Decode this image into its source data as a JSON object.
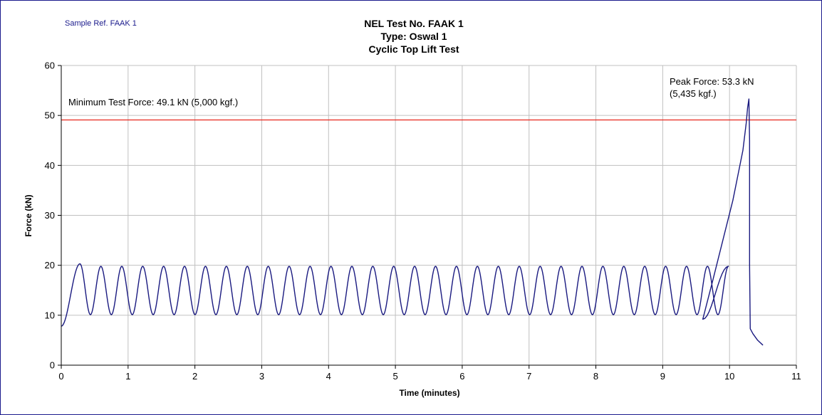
{
  "sample_ref": "Sample Ref. FAAK 1",
  "chart_data": {
    "type": "line",
    "title_lines": [
      "NEL Test No. FAAK 1",
      "Type: Oswal 1",
      "Cyclic Top Lift Test"
    ],
    "xlabel": "Time (minutes)",
    "ylabel": "Force (kN)",
    "xlim": [
      0,
      11
    ],
    "ylim": [
      0,
      60
    ],
    "x_ticks": [
      0,
      1,
      2,
      3,
      4,
      5,
      6,
      7,
      8,
      9,
      10,
      11
    ],
    "y_ticks": [
      0,
      10,
      20,
      30,
      40,
      50,
      60
    ],
    "grid": true,
    "colors": {
      "series": "#1a1a80",
      "reference": "#e8261c",
      "grid": "#c0c0c0"
    },
    "cyclic": {
      "start_force": 7.8,
      "first_peak_time": 0.28,
      "first_peak_force": 20.3,
      "period": 0.313,
      "cycles": 31,
      "peak_force": 19.8,
      "trough_force": 10.1,
      "end_time": 9.6,
      "end_force": 9.2
    },
    "series": [
      {
        "name": "Force",
        "tail_points": [
          [
            9.6,
            9.2
          ],
          [
            9.75,
            17.0
          ],
          [
            9.9,
            25.0
          ],
          [
            10.05,
            33.0
          ],
          [
            10.2,
            43.0
          ],
          [
            10.25,
            48.5
          ],
          [
            10.27,
            51.5
          ],
          [
            10.29,
            53.3
          ],
          [
            10.3,
            45.0
          ],
          [
            10.3,
            20.0
          ],
          [
            10.31,
            7.3
          ],
          [
            10.35,
            6.3
          ],
          [
            10.42,
            5.0
          ],
          [
            10.5,
            4.0
          ]
        ]
      }
    ],
    "reference_line": {
      "y": 49.1,
      "label": "Minimum Test Force: 49.1 kN (5,000 kgf.)"
    },
    "annotations": [
      {
        "id": "peak",
        "x": 10.29,
        "y": 53.3,
        "lines": [
          "Peak Force: 53.3 kN",
          "(5,435 kgf.)"
        ]
      }
    ]
  }
}
